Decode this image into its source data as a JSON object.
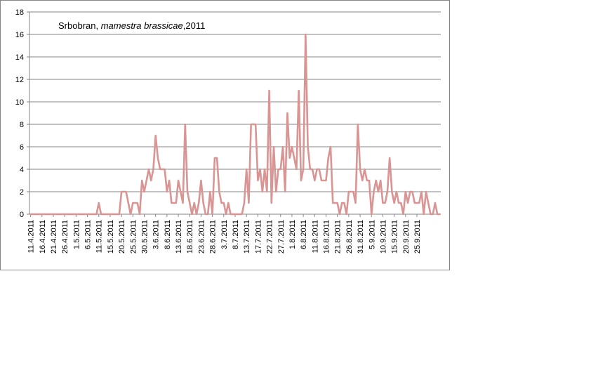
{
  "chart_data": {
    "type": "line",
    "title_parts": [
      "Srbobran, ",
      "mamestra brassicae",
      ",2011"
    ],
    "xlabel": "",
    "ylabel": "",
    "ylim": [
      0,
      18
    ],
    "yticks": [
      0,
      2,
      4,
      6,
      8,
      10,
      12,
      14,
      16,
      18
    ],
    "grid": true,
    "legend": "none",
    "line_color": "#D99594",
    "x_tick_labels": [
      "11.4.2011",
      "16.4.2011",
      "21.4.2011",
      "26.4.2011",
      "1.5.2011",
      "6.5.2011",
      "11.5.2011",
      "15.5.2011",
      "20.5.2011",
      "25.5.2011",
      "30.5.2011",
      "3.6.2011",
      "8.6.2011",
      "13.6.2011",
      "18.6.2011",
      "23.6.2011",
      "28.6.2011",
      "3.7.2011",
      "8.7.2011",
      "13.7.2011",
      "17.7.2011",
      "22.7.2011",
      "27.7.2011",
      "1.8.2011",
      "6.8.2011",
      "11.8.2011",
      "16.8.2011",
      "21.8.2011",
      "26.8.2011",
      "31.8.2011",
      "5.9.2011",
      "10.9.2011",
      "15.9.2011",
      "20.9.2011",
      "25.9.2011"
    ],
    "series": [
      {
        "values": [
          0,
          0,
          0,
          0,
          0,
          0,
          0,
          0,
          0,
          0,
          0,
          0,
          0,
          0,
          0,
          0,
          0,
          0,
          0,
          0,
          0,
          0,
          0,
          0,
          0,
          0,
          0,
          0,
          0,
          0,
          1,
          0,
          0,
          0,
          0,
          0,
          0,
          0,
          0,
          0,
          2,
          2,
          2,
          1,
          0,
          1,
          1,
          1,
          0,
          3,
          2,
          3,
          4,
          3,
          4,
          7,
          5,
          4,
          4,
          4,
          2,
          3,
          1,
          1,
          1,
          3,
          2,
          1,
          8,
          2,
          1,
          0,
          1,
          0,
          1,
          3,
          1,
          0,
          0,
          2,
          0,
          5,
          5,
          2,
          1,
          1,
          0,
          1,
          0,
          0,
          0,
          0,
          0,
          0,
          1,
          4,
          1,
          8,
          8,
          8,
          3,
          4,
          2,
          4,
          2,
          11,
          1,
          6,
          2,
          4,
          4,
          6,
          2,
          9,
          5,
          6,
          5,
          4,
          11,
          3,
          4,
          16,
          6,
          4,
          4,
          3,
          4,
          4,
          3,
          3,
          3,
          5,
          6,
          1,
          1,
          1,
          0,
          1,
          1,
          0,
          2,
          2,
          2,
          1,
          8,
          4,
          3,
          4,
          3,
          3,
          0,
          2,
          3,
          2,
          3,
          1,
          1,
          2,
          5,
          2,
          1,
          2,
          1,
          1,
          0,
          2,
          1,
          2,
          2,
          1,
          1,
          1,
          2,
          0,
          2,
          1,
          0,
          0,
          1,
          0,
          0
        ]
      }
    ]
  }
}
